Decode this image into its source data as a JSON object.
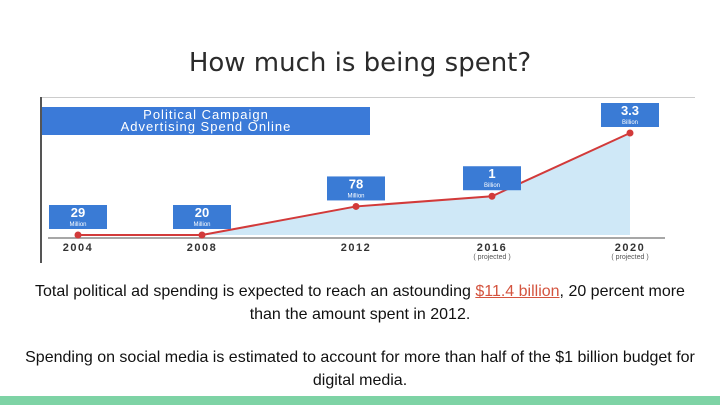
{
  "slide": {
    "title": "How much is being spent?",
    "para1_before": "Total political ad spending is expected to reach an astounding ",
    "para1_link": "$11.4 billion",
    "para1_after": ", 20 percent more than the amount spent in 2012.",
    "para2": "Spending on social media is estimated to account for more than half of the $1 billion budget for digital media."
  },
  "colors": {
    "header_bg": "#3b7ad8",
    "badge_bg": "#3a7bd5",
    "line": "#d23a3a",
    "area": "#cfe8f7",
    "axis": "#8a8a8a",
    "link": "#d4543f",
    "footer": "#7ed3a5"
  },
  "chart_data": {
    "type": "area",
    "title": "Political Campaign Advertising Spend Online",
    "categories": [
      "2004",
      "2008",
      "2012",
      "2016",
      "2020"
    ],
    "category_notes": [
      "",
      "",
      "",
      "( projected )",
      "( projected )"
    ],
    "values_millions": [
      29,
      20,
      78,
      1000,
      3300
    ],
    "labels": [
      {
        "value": "29",
        "unit": "Million"
      },
      {
        "value": "20",
        "unit": "Million"
      },
      {
        "value": "78",
        "unit": "Million"
      },
      {
        "value": "1",
        "unit": "Billion"
      },
      {
        "value": "3.3",
        "unit": "Billion"
      }
    ],
    "plotted_levels": [
      0.0,
      0.0,
      0.28,
      0.38,
      1.0
    ],
    "xlabel": "",
    "ylabel": "",
    "grid": false,
    "legend": "none"
  }
}
